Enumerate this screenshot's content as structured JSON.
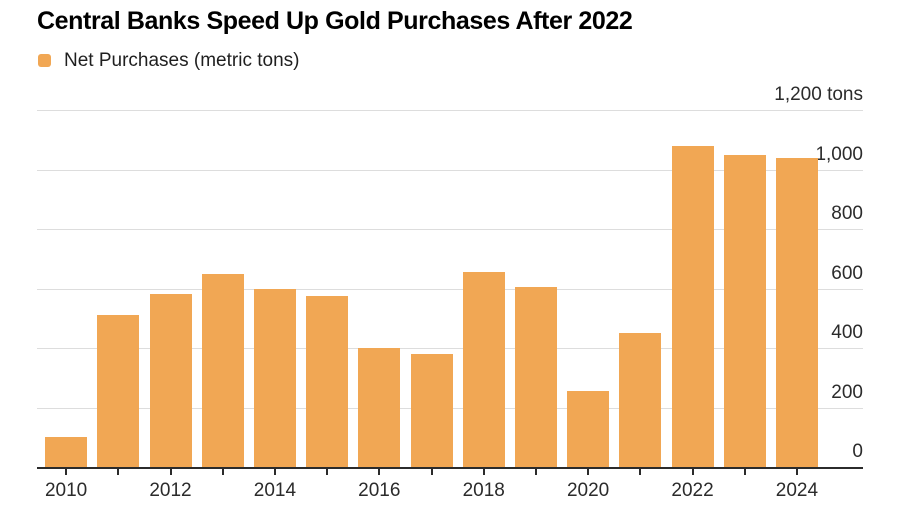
{
  "page": {
    "background": "#ffffff"
  },
  "header": {
    "title": "Central Banks Speed Up Gold Purchases After 2022"
  },
  "legend": {
    "label": "Net Purchases (metric tons)",
    "swatch_color": "#F1A754"
  },
  "colors": {
    "bar": "#F1A754",
    "gridline": "#DDDDDD",
    "axis": "#2B2B2B",
    "tick_label": "#2B2B2B",
    "title": "#000000"
  },
  "chart_data": {
    "type": "bar",
    "title": "Central Banks Speed Up Gold Purchases After 2022",
    "series_name": "Net Purchases (metric tons)",
    "unit": "metric tons",
    "categories": [
      "2010",
      "2011",
      "2012",
      "2013",
      "2014",
      "2015",
      "2016",
      "2017",
      "2018",
      "2019",
      "2020",
      "2021",
      "2022",
      "2023",
      "2024"
    ],
    "values": [
      100,
      510,
      580,
      650,
      600,
      575,
      400,
      380,
      655,
      605,
      255,
      450,
      1080,
      1050,
      1040
    ],
    "x_tick_labels": [
      "2010",
      "",
      "2012",
      "",
      "2014",
      "",
      "2016",
      "",
      "2018",
      "",
      "2020",
      "",
      "2022",
      "",
      "2024"
    ],
    "y_ticks": [
      {
        "value": 0,
        "label": "0"
      },
      {
        "value": 200,
        "label": "200"
      },
      {
        "value": 400,
        "label": "400"
      },
      {
        "value": 600,
        "label": "600"
      },
      {
        "value": 800,
        "label": "800"
      },
      {
        "value": 1000,
        "label": "1,000"
      },
      {
        "value": 1200,
        "label": "1,200 tons"
      }
    ],
    "ylim": [
      0,
      1200
    ],
    "grid": true,
    "legend_position": "top-left",
    "value_axis_side": "right",
    "xlabel": "",
    "ylabel": "Net Purchases (metric tons)"
  }
}
